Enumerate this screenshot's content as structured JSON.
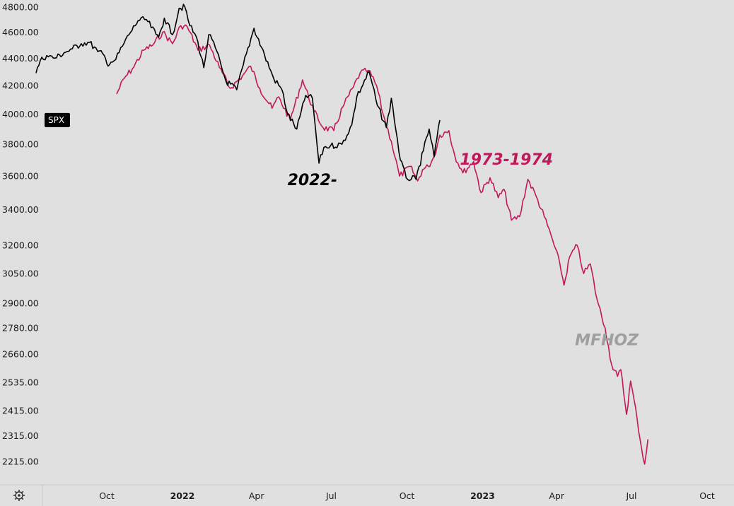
{
  "chart_data": {
    "type": "line",
    "title": "",
    "y_scale": "log",
    "ylim": [
      2160,
      4810
    ],
    "y_ticks": [
      "4800.00",
      "4600.00",
      "4400.00",
      "4200.00",
      "4000.00",
      "3800.00",
      "3600.00",
      "3400.00",
      "3200.00",
      "3050.00",
      "2900.00",
      "2780.00",
      "2660.00",
      "2535.00",
      "2415.00",
      "2315.00",
      "2215.00"
    ],
    "x_ticks": [
      {
        "label": "Oct",
        "date": "2021-10-01",
        "year": false
      },
      {
        "label": "2022",
        "date": "2022-01-01",
        "year": true
      },
      {
        "label": "Apr",
        "date": "2022-04-01",
        "year": false
      },
      {
        "label": "Jul",
        "date": "2022-07-01",
        "year": false
      },
      {
        "label": "Oct",
        "date": "2022-10-01",
        "year": false
      },
      {
        "label": "2023",
        "date": "2023-01-01",
        "year": true
      },
      {
        "label": "Apr",
        "date": "2023-04-01",
        "year": false
      },
      {
        "label": "Jul",
        "date": "2023-07-01",
        "year": false
      },
      {
        "label": "Oct",
        "date": "2023-10-01",
        "year": false
      }
    ],
    "xlim": [
      "2021-07-07",
      "2023-11-15"
    ],
    "series": [
      {
        "name": "SPX",
        "label": "2022-",
        "color": "#000000",
        "points": [
          [
            "2021-07-07",
            4290
          ],
          [
            "2021-07-12",
            4380
          ],
          [
            "2021-07-20",
            4420
          ],
          [
            "2021-07-30",
            4400
          ],
          [
            "2021-08-10",
            4440
          ],
          [
            "2021-08-20",
            4470
          ],
          [
            "2021-08-31",
            4510
          ],
          [
            "2021-09-10",
            4520
          ],
          [
            "2021-09-20",
            4450
          ],
          [
            "2021-09-28",
            4420
          ],
          [
            "2021-10-01",
            4360
          ],
          [
            "2021-10-06",
            4370
          ],
          [
            "2021-10-12",
            4390
          ],
          [
            "2021-10-20",
            4490
          ],
          [
            "2021-10-28",
            4580
          ],
          [
            "2021-11-08",
            4690
          ],
          [
            "2021-11-18",
            4700
          ],
          [
            "2021-11-30",
            4580
          ],
          [
            "2021-12-03",
            4560
          ],
          [
            "2021-12-10",
            4710
          ],
          [
            "2021-12-20",
            4580
          ],
          [
            "2021-12-28",
            4790
          ],
          [
            "2022-01-04",
            4800
          ],
          [
            "2022-01-10",
            4650
          ],
          [
            "2022-01-18",
            4560
          ],
          [
            "2022-01-27",
            4330
          ],
          [
            "2022-02-02",
            4580
          ],
          [
            "2022-02-10",
            4480
          ],
          [
            "2022-02-23",
            4230
          ],
          [
            "2022-03-08",
            4170
          ],
          [
            "2022-03-16",
            4350
          ],
          [
            "2022-03-29",
            4630
          ],
          [
            "2022-04-11",
            4420
          ],
          [
            "2022-04-22",
            4250
          ],
          [
            "2022-05-02",
            4170
          ],
          [
            "2022-05-09",
            4000
          ],
          [
            "2022-05-20",
            3900
          ],
          [
            "2022-05-31",
            4130
          ],
          [
            "2022-06-08",
            4110
          ],
          [
            "2022-06-16",
            3680
          ],
          [
            "2022-06-22",
            3780
          ],
          [
            "2022-06-30",
            3790
          ],
          [
            "2022-07-14",
            3800
          ],
          [
            "2022-07-26",
            3930
          ],
          [
            "2022-08-01",
            4120
          ],
          [
            "2022-08-16",
            4300
          ],
          [
            "2022-08-26",
            4060
          ],
          [
            "2022-09-06",
            3910
          ],
          [
            "2022-09-12",
            4110
          ],
          [
            "2022-09-23",
            3700
          ],
          [
            "2022-09-30",
            3590
          ],
          [
            "2022-10-12",
            3580
          ],
          [
            "2022-10-21",
            3760
          ],
          [
            "2022-10-28",
            3900
          ],
          [
            "2022-11-03",
            3720
          ],
          [
            "2022-11-10",
            3960
          ]
        ]
      },
      {
        "name": "1973-1974",
        "label": "1973-1974",
        "color": "#c2185b",
        "points": [
          [
            "2021-10-13",
            4140
          ],
          [
            "2021-10-22",
            4250
          ],
          [
            "2021-11-01",
            4320
          ],
          [
            "2021-11-15",
            4460
          ],
          [
            "2021-11-26",
            4500
          ],
          [
            "2021-12-08",
            4600
          ],
          [
            "2021-12-20",
            4510
          ],
          [
            "2021-12-30",
            4650
          ],
          [
            "2022-01-07",
            4640
          ],
          [
            "2022-01-20",
            4460
          ],
          [
            "2022-02-03",
            4500
          ],
          [
            "2022-02-15",
            4330
          ],
          [
            "2022-02-28",
            4180
          ],
          [
            "2022-03-15",
            4270
          ],
          [
            "2022-03-25",
            4340
          ],
          [
            "2022-04-05",
            4180
          ],
          [
            "2022-04-20",
            4040
          ],
          [
            "2022-04-28",
            4120
          ],
          [
            "2022-05-12",
            3960
          ],
          [
            "2022-05-27",
            4240
          ],
          [
            "2022-06-10",
            4020
          ],
          [
            "2022-06-21",
            3910
          ],
          [
            "2022-07-04",
            3890
          ],
          [
            "2022-07-15",
            4050
          ],
          [
            "2022-07-28",
            4190
          ],
          [
            "2022-08-05",
            4290
          ],
          [
            "2022-08-15",
            4310
          ],
          [
            "2022-08-25",
            4200
          ],
          [
            "2022-09-02",
            4000
          ],
          [
            "2022-09-12",
            3820
          ],
          [
            "2022-09-22",
            3600
          ],
          [
            "2022-10-05",
            3660
          ],
          [
            "2022-10-14",
            3570
          ],
          [
            "2022-10-20",
            3640
          ],
          [
            "2022-10-27",
            3660
          ],
          [
            "2022-11-03",
            3720
          ],
          [
            "2022-11-10",
            3860
          ],
          [
            "2022-11-21",
            3890
          ],
          [
            "2022-11-28",
            3730
          ],
          [
            "2022-12-08",
            3620
          ],
          [
            "2022-12-21",
            3690
          ],
          [
            "2022-12-30",
            3500
          ],
          [
            "2023-01-10",
            3590
          ],
          [
            "2023-01-20",
            3470
          ],
          [
            "2023-01-27",
            3520
          ],
          [
            "2023-02-05",
            3340
          ],
          [
            "2023-02-15",
            3360
          ],
          [
            "2023-02-25",
            3580
          ],
          [
            "2023-03-07",
            3480
          ],
          [
            "2023-03-17",
            3360
          ],
          [
            "2023-03-27",
            3230
          ],
          [
            "2023-04-05",
            3100
          ],
          [
            "2023-04-10",
            2990
          ],
          [
            "2023-04-17",
            3140
          ],
          [
            "2023-04-26",
            3200
          ],
          [
            "2023-05-04",
            3050
          ],
          [
            "2023-05-12",
            3100
          ],
          [
            "2023-05-20",
            2920
          ],
          [
            "2023-05-30",
            2780
          ],
          [
            "2023-06-07",
            2610
          ],
          [
            "2023-06-14",
            2560
          ],
          [
            "2023-06-18",
            2590
          ],
          [
            "2023-06-25",
            2400
          ],
          [
            "2023-06-30",
            2540
          ],
          [
            "2023-07-08",
            2380
          ],
          [
            "2023-07-13",
            2270
          ],
          [
            "2023-07-17",
            2205
          ],
          [
            "2023-07-21",
            2300
          ]
        ]
      }
    ],
    "annotations": [
      {
        "text": "2022-",
        "date": "2022-06-08",
        "value": 3545
      },
      {
        "text": "1973-1974",
        "date": "2023-01-30",
        "value": 3670
      }
    ],
    "watermark": "MFHOZ",
    "price_tag": {
      "symbol": "SPX",
      "value": 3960
    }
  },
  "settings_icon": "gear-icon"
}
